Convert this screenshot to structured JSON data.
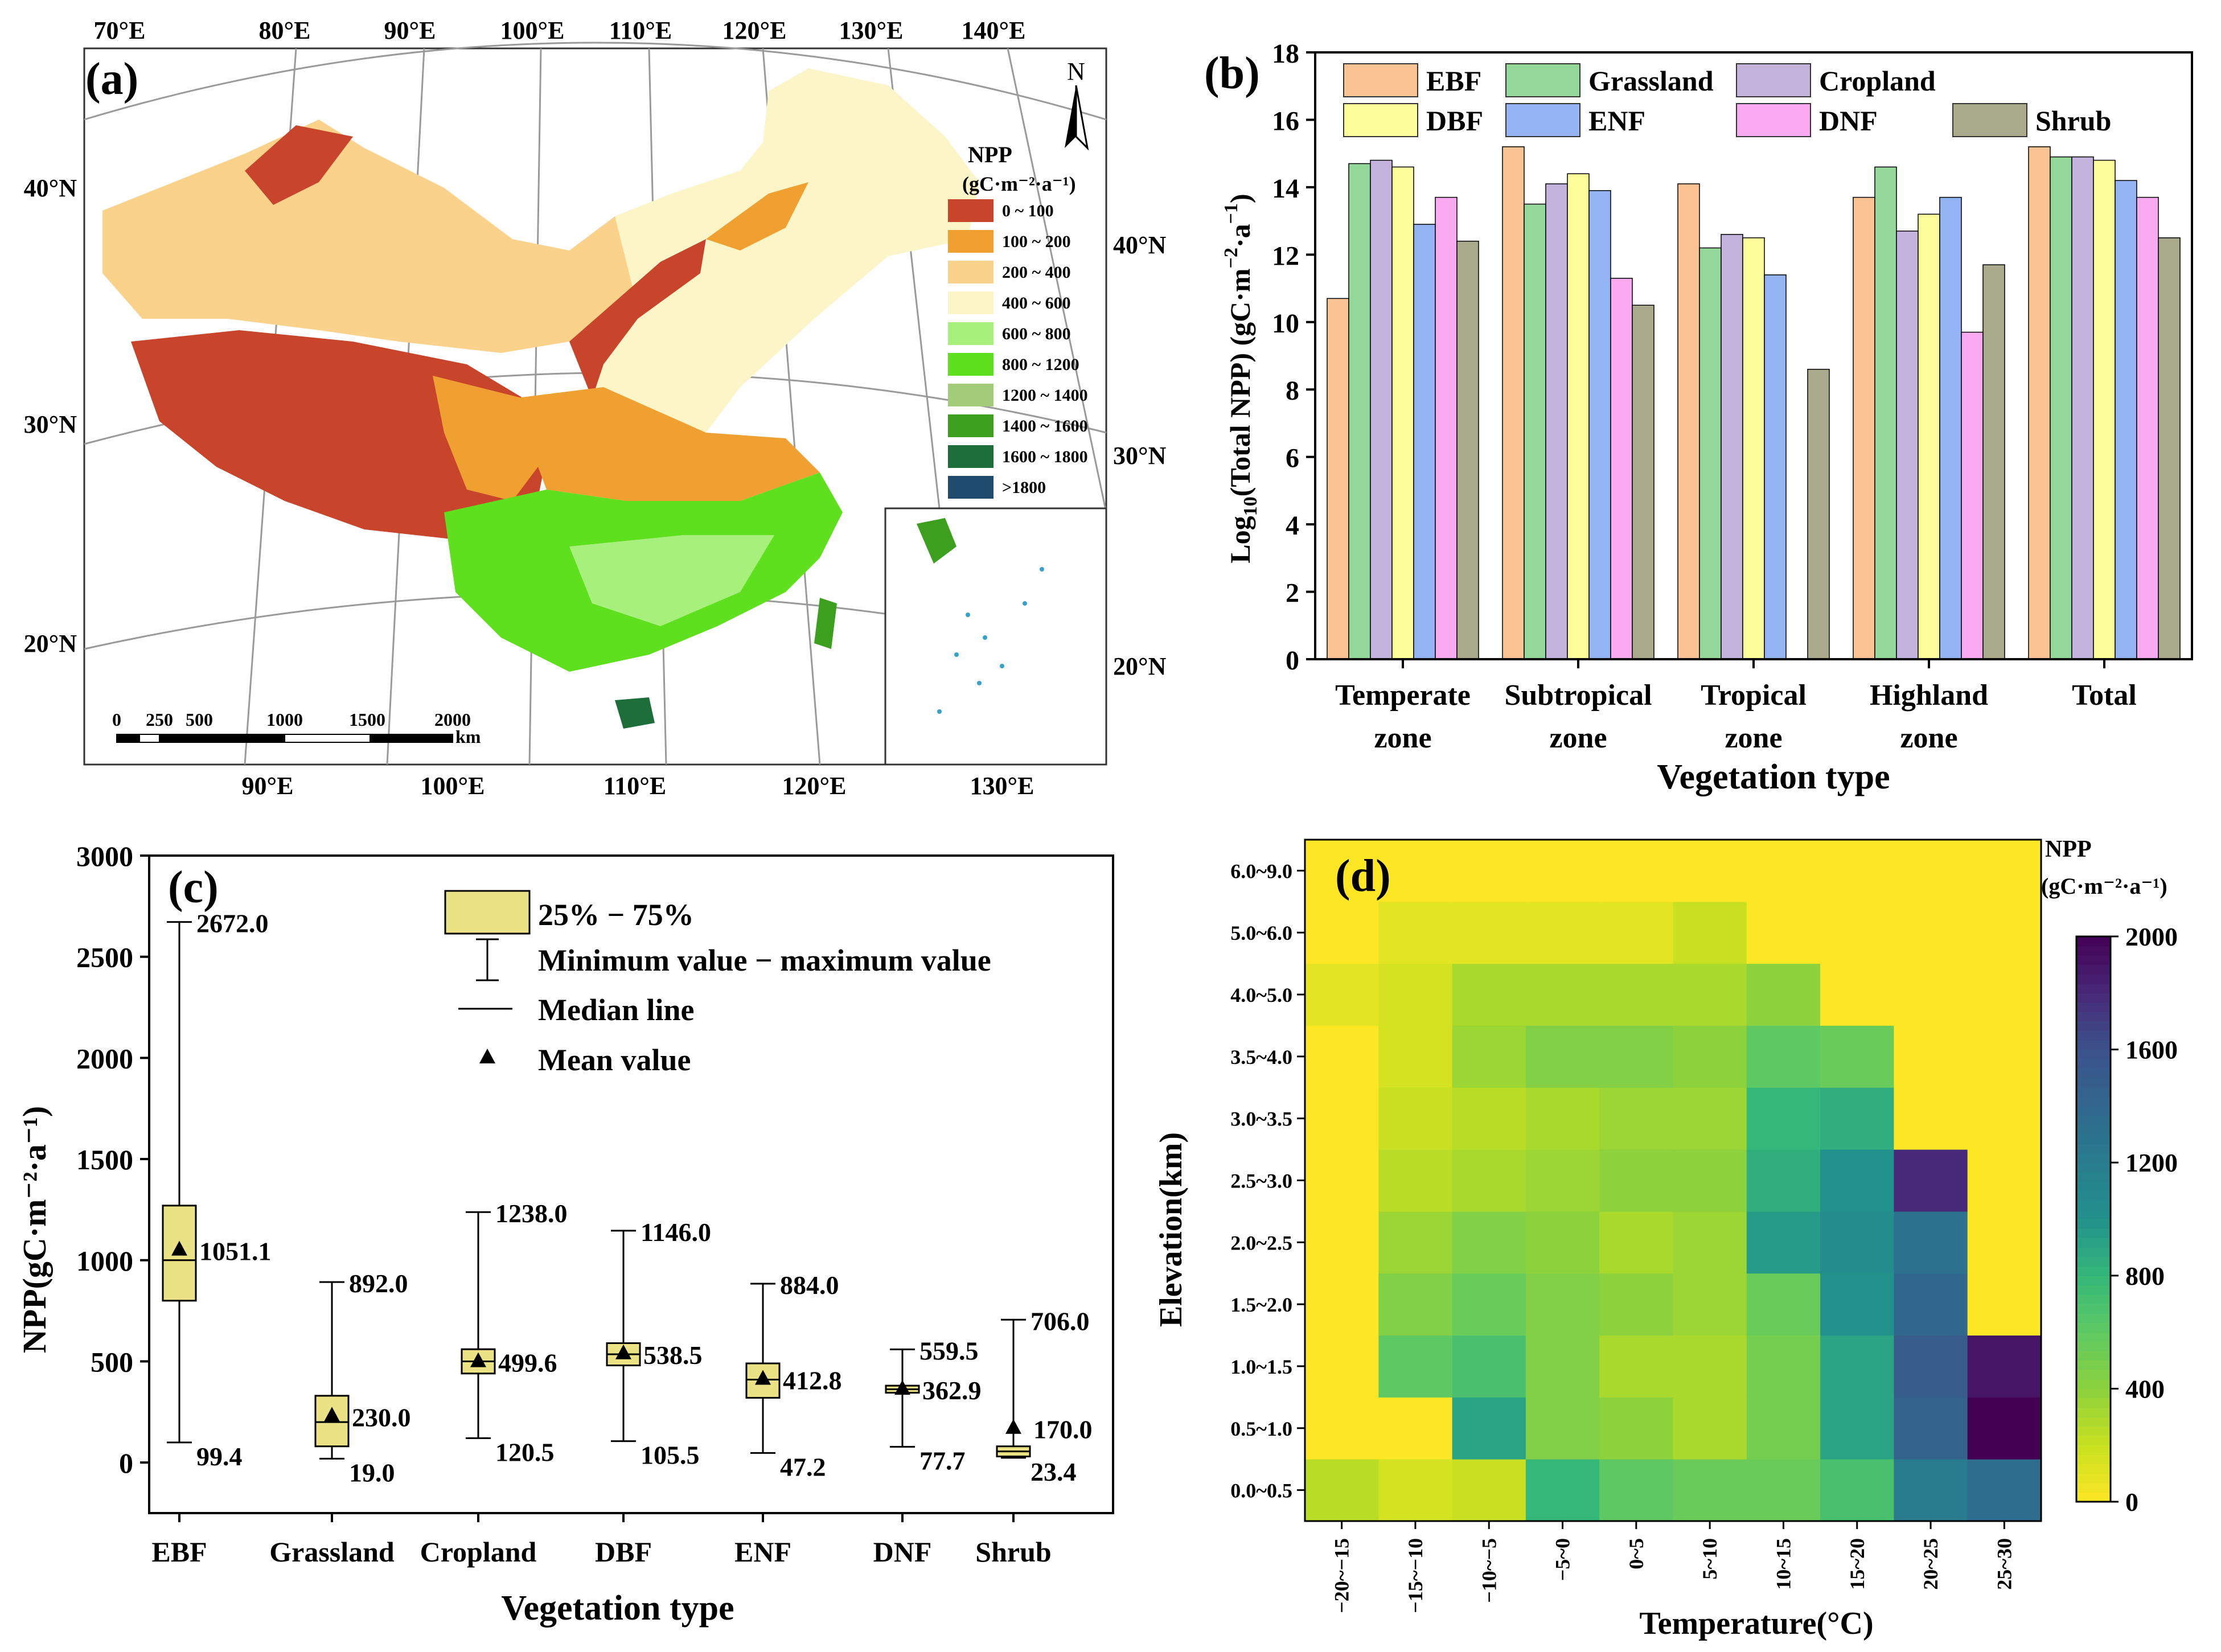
{
  "panels": {
    "a": {
      "label": "(a)",
      "north": "N",
      "top_lon": [
        "70°E",
        "80°E",
        "90°E",
        "100°E",
        "110°E",
        "120°E",
        "130°E",
        "140°E"
      ],
      "bottom_lon": [
        "90°E",
        "100°E",
        "110°E",
        "120°E",
        "130°E"
      ],
      "left_lat": [
        "40°N",
        "30°N",
        "20°N"
      ],
      "right_lat": [
        "40°N",
        "30°N",
        "20°N"
      ],
      "legend_title_1": "NPP",
      "legend_title_2": "(gC·m⁻²·a⁻¹)",
      "legend": [
        {
          "label": "0 ~ 100",
          "color": "#c8452c"
        },
        {
          "label": "100 ~ 200",
          "color": "#f0a030"
        },
        {
          "label": "200 ~ 400",
          "color": "#fad28c"
        },
        {
          "label": "400 ~ 600",
          "color": "#fbf5c8"
        },
        {
          "label": "600 ~ 800",
          "color": "#a8f07c"
        },
        {
          "label": "800 ~ 1200",
          "color": "#5ee01e"
        },
        {
          "label": "1200 ~ 1400",
          "color": "#a3cc78"
        },
        {
          "label": "1400 ~ 1600",
          "color": "#3ca01e"
        },
        {
          "label": "1600 ~ 1800",
          "color": "#1e6e3c"
        },
        {
          "label": ">1800",
          "color": "#1e4b6e"
        }
      ],
      "scale_ticks": [
        "0",
        "250",
        "500",
        "1000",
        "1500",
        "2000"
      ],
      "scale_unit": "km"
    },
    "b": {
      "label": "(b)",
      "chart_data": {
        "type": "bar",
        "categories": [
          [
            "Temperate",
            "zone"
          ],
          [
            "Subtropical",
            "zone"
          ],
          [
            "Tropical",
            "zone"
          ],
          [
            "Highland",
            "zone"
          ],
          [
            "Total"
          ]
        ],
        "series": [
          {
            "name": "EBF",
            "color": "#fbc393",
            "values": [
              10.7,
              15.2,
              14.1,
              13.7,
              15.2
            ]
          },
          {
            "name": "Grassland",
            "color": "#93d799",
            "values": [
              14.7,
              13.5,
              12.2,
              14.6,
              14.9
            ]
          },
          {
            "name": "Cropland",
            "color": "#c3b3dc",
            "values": [
              14.8,
              14.1,
              12.6,
              12.7,
              14.9
            ]
          },
          {
            "name": "DBF",
            "color": "#fdfd9c",
            "values": [
              14.6,
              14.4,
              12.5,
              13.2,
              14.8
            ]
          },
          {
            "name": "ENF",
            "color": "#93b3f3",
            "values": [
              12.9,
              13.9,
              11.4,
              13.7,
              14.2
            ]
          },
          {
            "name": "DNF",
            "color": "#faaaf0",
            "values": [
              13.7,
              11.3,
              null,
              9.7,
              13.7
            ]
          },
          {
            "name": "Shrub",
            "color": "#a9a98b",
            "values": [
              12.4,
              10.5,
              8.6,
              11.7,
              12.5
            ]
          }
        ],
        "ylabel_pre": "Log",
        "ylabel_sub": "10",
        "ylabel_mid": "(Total NPP) (gC·m",
        "ylabel_sup1": "−2",
        "ylabel_dot": "·a",
        "ylabel_sup2": "−1",
        "ylabel_post": ")",
        "xlabel": "Vegetation type",
        "ylim": [
          0,
          18
        ],
        "yticks": [
          0,
          2,
          4,
          6,
          8,
          10,
          12,
          14,
          16,
          18
        ]
      }
    },
    "c": {
      "label": "(c)",
      "chart_data": {
        "type": "box",
        "categories": [
          "EBF",
          "Grassland",
          "Cropland",
          "DBF",
          "ENF",
          "DNF",
          "Shrub"
        ],
        "boxes": [
          {
            "min": 99.4,
            "q1": 800,
            "median": 1000,
            "q3": 1270,
            "max": 2672.0,
            "mean": 1051.1,
            "mean_label": "1051.1",
            "max_label": "2672.0",
            "min_label": "99.4"
          },
          {
            "min": 19.0,
            "q1": 80,
            "median": 200,
            "q3": 330,
            "max": 892.0,
            "mean": 230.0,
            "mean_label": "230.0",
            "max_label": "892.0",
            "min_label": "19.0"
          },
          {
            "min": 120.5,
            "q1": 440,
            "median": 500,
            "q3": 560,
            "max": 1238.0,
            "mean": 499.6,
            "mean_label": "499.6",
            "max_label": "1238.0",
            "min_label": "120.5"
          },
          {
            "min": 105.5,
            "q1": 480,
            "median": 535,
            "q3": 590,
            "max": 1146.0,
            "mean": 538.5,
            "mean_label": "538.5",
            "max_label": "1146.0",
            "min_label": "105.5"
          },
          {
            "min": 47.2,
            "q1": 320,
            "median": 410,
            "q3": 490,
            "max": 884.0,
            "mean": 412.8,
            "mean_label": "412.8",
            "max_label": "884.0",
            "min_label": "47.2"
          },
          {
            "min": 77.7,
            "q1": 345,
            "median": 362,
            "q3": 380,
            "max": 559.5,
            "mean": 362.9,
            "mean_label": "362.9",
            "max_label": "559.5",
            "min_label": "77.7"
          },
          {
            "min": 23.4,
            "q1": 30,
            "median": 55,
            "q3": 80,
            "max": 706.0,
            "mean": 170.0,
            "mean_label": "170.0",
            "max_label": "706.0",
            "min_label": "23.4"
          }
        ],
        "ylim": [
          -250,
          3000
        ],
        "yticks": [
          0,
          500,
          1000,
          1500,
          2000,
          2500,
          3000
        ],
        "ylabel": "NPP(gC·m⁻²·a⁻¹)",
        "xlabel": "Vegetation type",
        "legend": [
          "25% − 75%",
          "Minimum value − maximum value",
          "Median line",
          "Mean value"
        ]
      }
    },
    "d": {
      "label": "(d)",
      "chart_data": {
        "type": "heatmap",
        "x_categories": [
          "−20~−15",
          "−15~−10",
          "−10~−5",
          "−5~0",
          "0~5",
          "5~10",
          "10~15",
          "15~20",
          "20~25",
          "25~30"
        ],
        "y_categories": [
          "0.0~0.5",
          "0.5~1.0",
          "1.0~1.5",
          "1.5~2.0",
          "2.0~2.5",
          "2.5~3.0",
          "3.0~3.5",
          "3.5~4.0",
          "4.0~5.0",
          "5.0~6.0",
          "6.0~9.0"
        ],
        "values": [
          [
            250,
            150,
            200,
            800,
            600,
            550,
            550,
            700,
            1200,
            1350
          ],
          [
            0,
            0,
            900,
            450,
            400,
            300,
            500,
            900,
            1450,
            2000
          ],
          [
            0,
            600,
            700,
            450,
            300,
            300,
            500,
            900,
            1500,
            1900
          ],
          [
            0,
            450,
            550,
            450,
            400,
            350,
            550,
            1000,
            1400,
            0
          ],
          [
            0,
            350,
            450,
            400,
            300,
            350,
            950,
            1050,
            1300,
            0
          ],
          [
            0,
            250,
            300,
            350,
            400,
            400,
            850,
            1000,
            1800,
            0
          ],
          [
            0,
            200,
            250,
            300,
            350,
            350,
            800,
            850,
            0,
            0
          ],
          [
            0,
            150,
            350,
            450,
            450,
            400,
            600,
            550,
            0,
            0
          ],
          [
            100,
            150,
            300,
            300,
            300,
            300,
            400,
            0,
            0,
            0
          ],
          [
            0,
            100,
            100,
            100,
            100,
            200,
            0,
            0,
            0,
            0
          ],
          [
            0,
            0,
            0,
            0,
            0,
            0,
            0,
            0,
            0,
            0
          ]
        ],
        "vmin": 0,
        "vmax": 2000,
        "cbar_ticks": [
          0,
          400,
          800,
          1200,
          1600,
          2000
        ],
        "cbar_title_1": "NPP",
        "cbar_title_2": "(gC·m⁻²·a⁻¹)",
        "xlabel": "Temperature(°C)",
        "ylabel": "Elevation(km)"
      }
    }
  }
}
